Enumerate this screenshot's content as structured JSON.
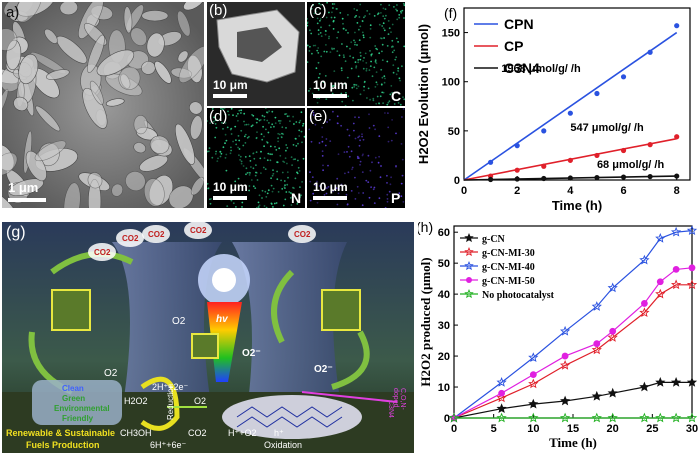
{
  "panels": {
    "a": {
      "label": "a)",
      "scale": "1 μm"
    },
    "b": {
      "label": "(b)",
      "scale": "10 μm"
    },
    "c": {
      "label": "(c)",
      "scale": "10 μm",
      "element": "C",
      "color": "#2fd08a"
    },
    "d": {
      "label": "(d)",
      "scale": "10 μm",
      "element": "N",
      "color": "#2fd08a"
    },
    "e": {
      "label": "(e)",
      "scale": "10 μm",
      "element": "P",
      "color": "#5a3bd6"
    },
    "g": {
      "label": "(g)",
      "illustration_text": {
        "co2": "CO2",
        "hv": "hv",
        "o2": "O2",
        "o2_radical": "O2⁻",
        "h2o2": "H2O2",
        "two_h": "2H⁺+2e⁻",
        "six_h": "6H⁺+6e⁻",
        "reduction": "Reduction",
        "oxidation": "Oxidation",
        "ch3oh": "CH3OH",
        "co2_b": "CO2",
        "h_o2": "H⁺+O2",
        "h_plus": "h⁺",
        "clean": "Clean",
        "green": "Green",
        "env": "Environmental",
        "friendly": "Friendly",
        "renewable": "Renewable & Sustainable",
        "fuels": "Fuels Production",
        "doped": "C,O,N-doped",
        "side": "C3N4"
      }
    }
  },
  "chart_data": [
    {
      "id": "f",
      "label": "(f)",
      "type": "scatter",
      "xlabel": "Time (h)",
      "ylabel": "H2O2 Evolution (μmol)",
      "xlim": [
        0,
        8.5
      ],
      "ylim": [
        0,
        175
      ],
      "xticks": [
        0,
        2,
        4,
        6,
        8
      ],
      "yticks": [
        0,
        50,
        100,
        150
      ],
      "legend": "top-left",
      "series": [
        {
          "name": "CPN",
          "color": "#2a52e0",
          "x": [
            1,
            2,
            3,
            4,
            5,
            6,
            7,
            8
          ],
          "y": [
            18,
            35,
            50,
            68,
            88,
            105,
            130,
            157
          ],
          "fit": [
            [
              0,
              0
            ],
            [
              8,
              150
            ]
          ],
          "annotation": "1968 μmol/g/ /h"
        },
        {
          "name": "CP",
          "color": "#e0202a",
          "x": [
            1,
            2,
            3,
            4,
            5,
            6,
            7,
            8
          ],
          "y": [
            4,
            10,
            14,
            20,
            25,
            30,
            36,
            44
          ],
          "fit": [
            [
              0,
              0
            ],
            [
              8,
              42
            ]
          ],
          "annotation": "547 μmol/g/ /h"
        },
        {
          "name": "C3N4",
          "color": "#111111",
          "x": [
            1,
            2,
            3,
            4,
            5,
            6,
            7,
            8
          ],
          "y": [
            0.5,
            1,
            1.5,
            2,
            2.5,
            3,
            3.5,
            4
          ],
          "fit": [
            [
              0,
              0
            ],
            [
              8,
              4
            ]
          ],
          "annotation": "68 μmol/g/ /h"
        }
      ]
    },
    {
      "id": "h",
      "label": "(h)",
      "type": "line",
      "xlabel": "Time (h)",
      "ylabel": "H2O2 produced (μmol)",
      "xlim": [
        0,
        30
      ],
      "ylim": [
        0,
        62
      ],
      "xticks": [
        0,
        5,
        10,
        15,
        20,
        25,
        30
      ],
      "yticks": [
        0,
        10,
        20,
        30,
        40,
        50,
        60
      ],
      "legend": "top-left",
      "series": [
        {
          "name": "g-CN",
          "color": "#111111",
          "marker": "star",
          "x": [
            0,
            6,
            10,
            14,
            18,
            20,
            24,
            26,
            28,
            30
          ],
          "y": [
            0,
            3,
            4.5,
            5.5,
            7,
            8,
            10,
            11.5,
            11.5,
            11.5
          ]
        },
        {
          "name": "g-CN-MI-30",
          "color": "#e0202a",
          "marker": "star",
          "x": [
            0,
            6,
            10,
            14,
            18,
            20,
            24,
            26,
            28,
            30
          ],
          "y": [
            0,
            6.5,
            11,
            17,
            22,
            26,
            34,
            40,
            43,
            43
          ]
        },
        {
          "name": "g-CN-MI-40",
          "color": "#2a52e0",
          "marker": "star",
          "x": [
            0,
            6,
            10,
            14,
            18,
            20,
            24,
            26,
            28,
            30
          ],
          "y": [
            0,
            11.5,
            19.5,
            28,
            36,
            42,
            51,
            58,
            60,
            60.5
          ]
        },
        {
          "name": "g-CN-MI-50",
          "color": "#e020e0",
          "marker": "circle",
          "x": [
            0,
            6,
            10,
            14,
            18,
            20,
            24,
            26,
            28,
            30
          ],
          "y": [
            0,
            8,
            14,
            20,
            24,
            28,
            37,
            44,
            48,
            48.5
          ]
        },
        {
          "name": "No photocatalyst",
          "color": "#20b020",
          "marker": "star",
          "x": [
            0,
            6,
            10,
            14,
            18,
            20,
            24,
            26,
            28,
            30
          ],
          "y": [
            0,
            0,
            0,
            0,
            0,
            0,
            0,
            0,
            0,
            0
          ]
        }
      ]
    }
  ]
}
